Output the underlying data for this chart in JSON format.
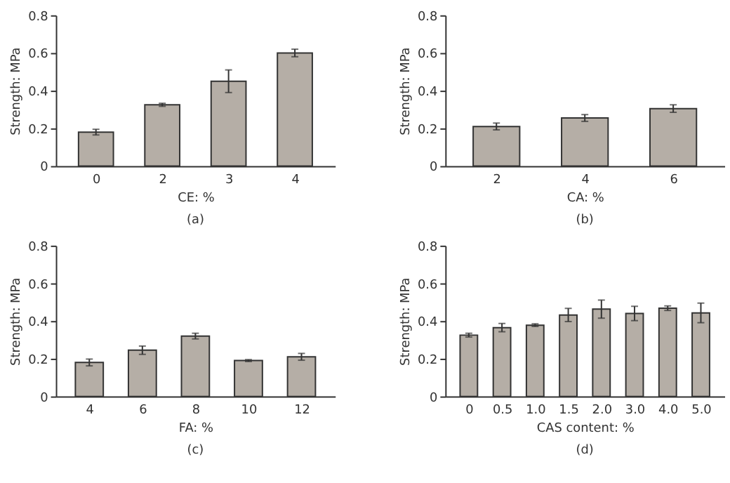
{
  "chart_data": [
    {
      "type": "bar",
      "xlabel": "CE: %",
      "ylabel": "Strength: MPa",
      "annotations": [
        "(a)"
      ],
      "categories": [
        "0",
        "2",
        "3",
        "4"
      ],
      "values": [
        0.18,
        0.325,
        0.45,
        0.6
      ],
      "errors": [
        0.015,
        0.008,
        0.06,
        0.02
      ],
      "color": "#b5aea6",
      "ylim": [
        0,
        0.8
      ],
      "yticks": [
        0,
        0.2,
        0.4,
        0.6,
        0.8
      ],
      "grid": false
    },
    {
      "type": "bar",
      "xlabel": "CA: %",
      "ylabel": "Strength: MPa",
      "annotations": [
        "(b)"
      ],
      "categories": [
        "2",
        "4",
        "6"
      ],
      "values": [
        0.21,
        0.255,
        0.305
      ],
      "errors": [
        0.018,
        0.018,
        0.02
      ],
      "color": "#b5aea6",
      "ylim": [
        0,
        0.8
      ],
      "yticks": [
        0,
        0.2,
        0.4,
        0.6,
        0.8
      ],
      "grid": false
    },
    {
      "type": "bar",
      "xlabel": "FA: %",
      "ylabel": "Strength: MPa",
      "annotations": [
        "(c)"
      ],
      "categories": [
        "4",
        "6",
        "8",
        "10",
        "12"
      ],
      "values": [
        0.18,
        0.245,
        0.32,
        0.19,
        0.21
      ],
      "errors": [
        0.018,
        0.022,
        0.015,
        0.005,
        0.018
      ],
      "color": "#b5aea6",
      "ylim": [
        0,
        0.8
      ],
      "yticks": [
        0,
        0.2,
        0.4,
        0.6,
        0.8
      ],
      "grid": false
    },
    {
      "type": "bar",
      "xlabel": "CAS content: %",
      "ylabel": "Strength: MPa",
      "annotations": [
        "(d)"
      ],
      "categories": [
        "0",
        "0.5",
        "1.0",
        "1.5",
        "2.0",
        "3.0",
        "4.0",
        "5.0"
      ],
      "values": [
        0.325,
        0.365,
        0.378,
        0.432,
        0.463,
        0.44,
        0.468,
        0.443
      ],
      "errors": [
        0.01,
        0.022,
        0.007,
        0.035,
        0.048,
        0.038,
        0.012,
        0.052
      ],
      "color": "#b5aea6",
      "ylim": [
        0,
        0.8
      ],
      "yticks": [
        0,
        0.2,
        0.4,
        0.6,
        0.8
      ],
      "grid": false
    }
  ]
}
